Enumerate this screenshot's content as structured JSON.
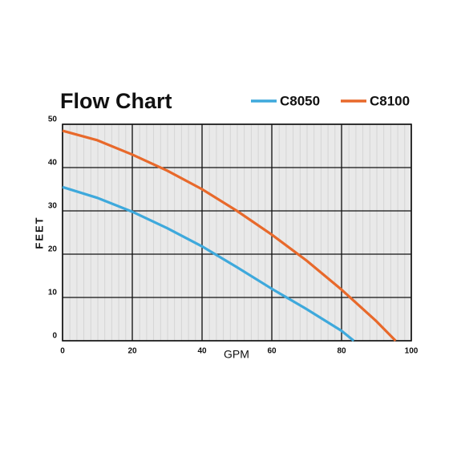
{
  "chart_data": {
    "type": "line",
    "title": "Flow Chart",
    "x_label": "GPM",
    "y_label": "FEET",
    "xlim": [
      0,
      100
    ],
    "xticks": [
      0,
      20,
      40,
      60,
      80,
      100
    ],
    "ylim": [
      0,
      50
    ],
    "yticks": [
      0,
      10,
      20,
      30,
      40,
      50
    ],
    "grid": true,
    "legend": "top-right",
    "series": [
      {
        "name": "C8050",
        "color": "#3ea9dc",
        "x": [
          0,
          10,
          20,
          30,
          40,
          50,
          60,
          70,
          80,
          83.5
        ],
        "values": [
          35.5,
          33,
          29.8,
          26,
          21.8,
          17,
          12,
          7.3,
          2.3,
          0
        ]
      },
      {
        "name": "C8100",
        "color": "#e8692b",
        "x": [
          0,
          10,
          20,
          30,
          40,
          50,
          60,
          70,
          80,
          90,
          95.5
        ],
        "values": [
          48.5,
          46.3,
          43,
          39.3,
          35,
          30,
          24.5,
          18.5,
          11.8,
          4.5,
          0
        ]
      }
    ]
  }
}
